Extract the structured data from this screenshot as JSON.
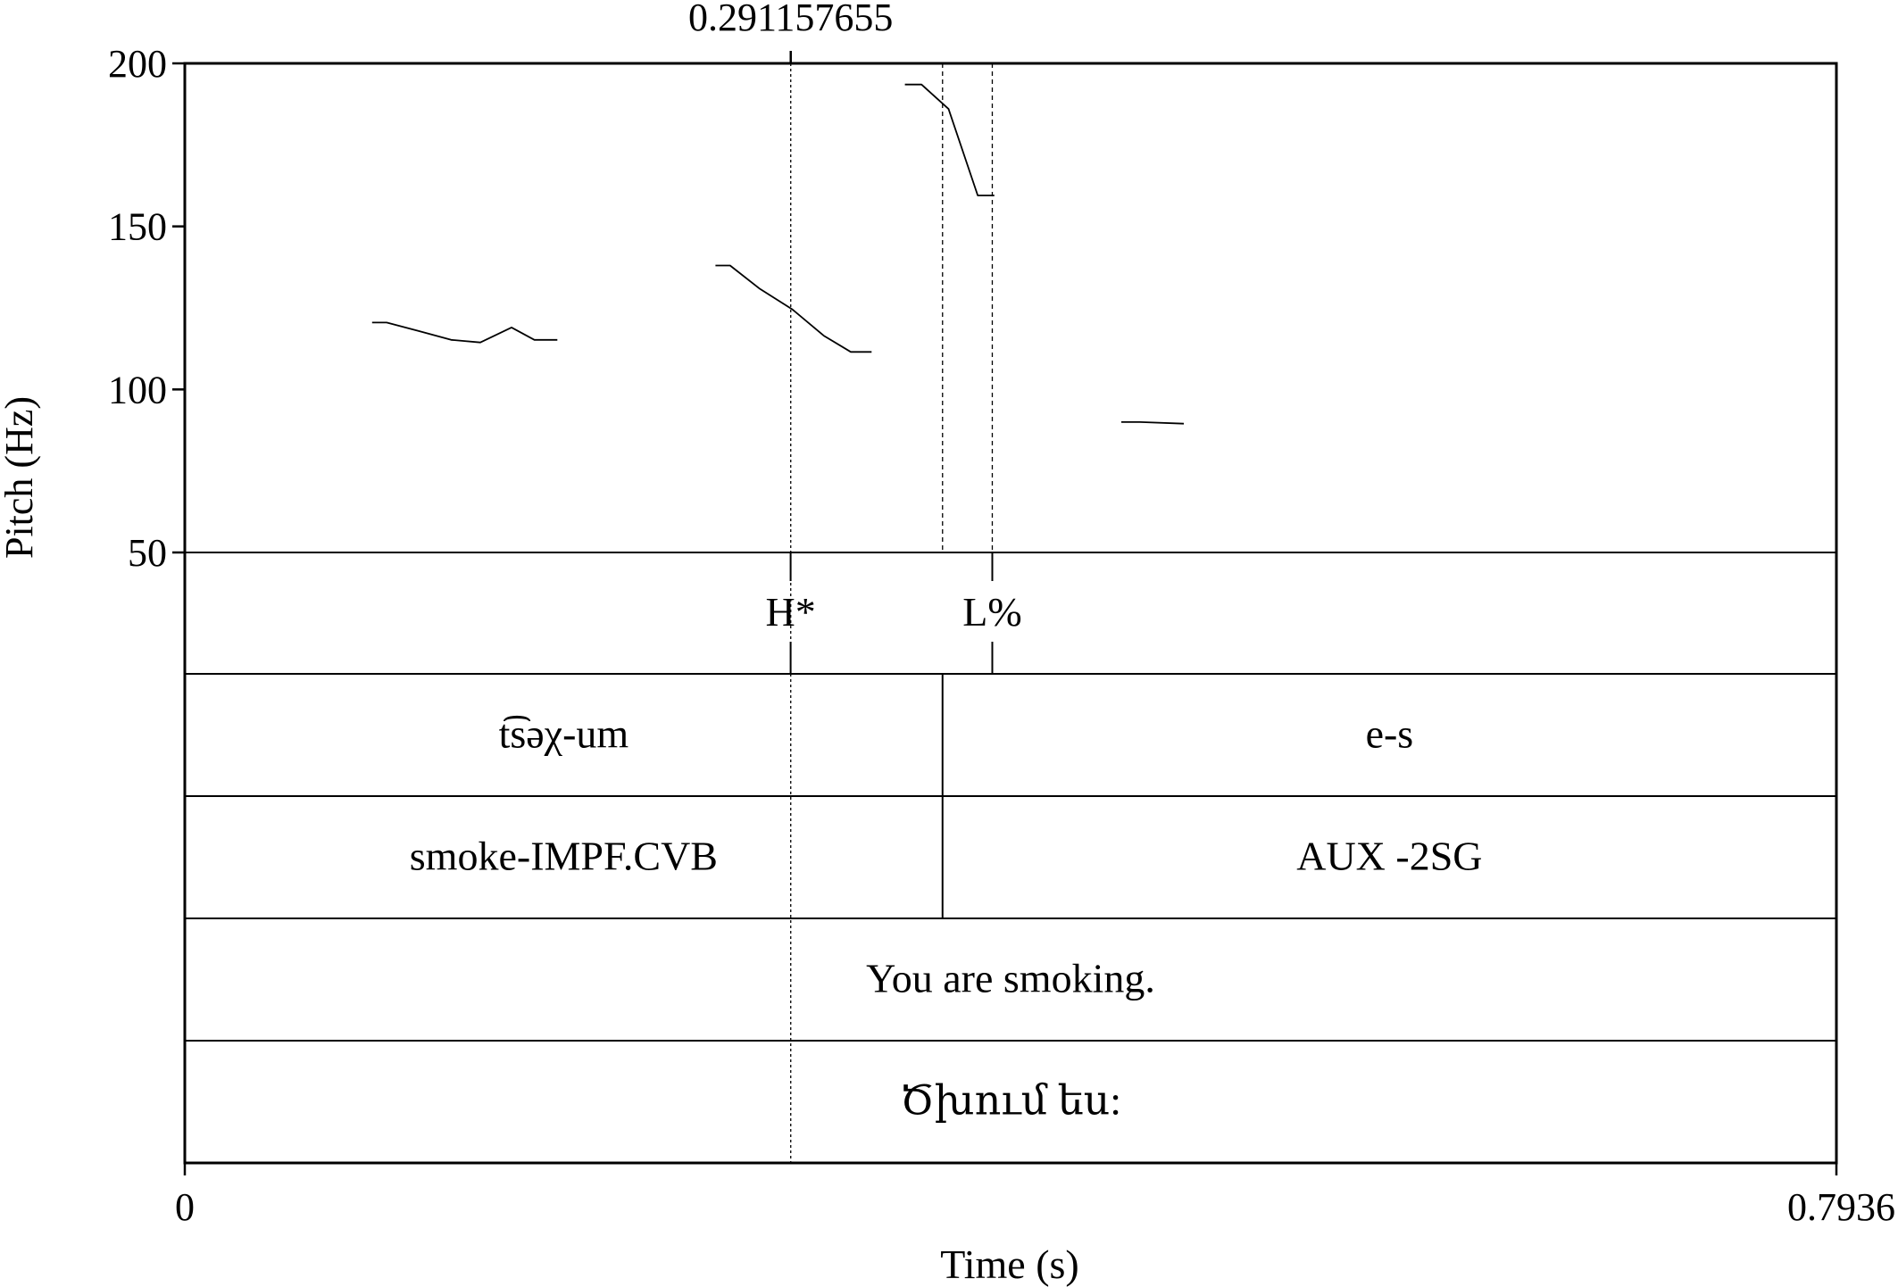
{
  "chart_data": {
    "type": "line",
    "x_axis": {
      "label": "Time (s)",
      "min": 0,
      "max": 0.7936,
      "ticks": [
        "0",
        "0.7936"
      ]
    },
    "y_axis": {
      "label": "Pitch (Hz)",
      "min": 50,
      "max": 200,
      "ticks": [
        50,
        100,
        150,
        200
      ]
    },
    "cursor": {
      "time": 0.291157655,
      "label": "0.291157655"
    },
    "series": [
      {
        "segments": [
          [
            [
              0.09,
              120.5
            ],
            [
              0.097,
              120.5
            ],
            [
              0.112,
              118
            ],
            [
              0.128,
              115.2
            ],
            [
              0.142,
              114.4
            ],
            [
              0.157,
              119
            ],
            [
              0.168,
              115.2
            ],
            [
              0.179,
              115.2
            ]
          ],
          [
            [
              0.255,
              138
            ],
            [
              0.262,
              138
            ],
            [
              0.276,
              131
            ],
            [
              0.292,
              124.5
            ],
            [
              0.307,
              116.5
            ],
            [
              0.32,
              111.5
            ],
            [
              0.33,
              111.5
            ]
          ],
          [
            [
              0.346,
              193.5
            ],
            [
              0.354,
              193.5
            ],
            [
              0.367,
              186
            ],
            [
              0.381,
              159.5
            ],
            [
              0.389,
              159.5
            ]
          ],
          [
            [
              0.45,
              90
            ],
            [
              0.459,
              90
            ],
            [
              0.48,
              89.5
            ]
          ]
        ]
      }
    ],
    "tiers": [
      {
        "type": "point",
        "points": [
          {
            "time": 0.2911,
            "label": "H*"
          },
          {
            "time": 0.388,
            "label": "L%"
          }
        ]
      },
      {
        "type": "interval",
        "intervals": [
          {
            "start": 0,
            "end": 0.3641,
            "label": "t͡səχ-um"
          },
          {
            "start": 0.3641,
            "end": 0.7936,
            "label": "e-s"
          }
        ]
      },
      {
        "type": "interval",
        "intervals": [
          {
            "start": 0,
            "end": 0.3641,
            "label": "smoke-IMPF.CVB"
          },
          {
            "start": 0.3641,
            "end": 0.7936,
            "label": "AUX -2SG"
          }
        ]
      },
      {
        "type": "interval",
        "intervals": [
          {
            "start": 0,
            "end": 0.7936,
            "label": "You are smoking."
          }
        ]
      },
      {
        "type": "interval",
        "intervals": [
          {
            "start": 0,
            "end": 0.7936,
            "label": "Ծխում ես:"
          }
        ]
      }
    ],
    "dotted_guides": [
      0.2911,
      0.3641,
      0.388
    ],
    "colors": {
      "line": "#000000",
      "background": "#ffffff"
    }
  }
}
